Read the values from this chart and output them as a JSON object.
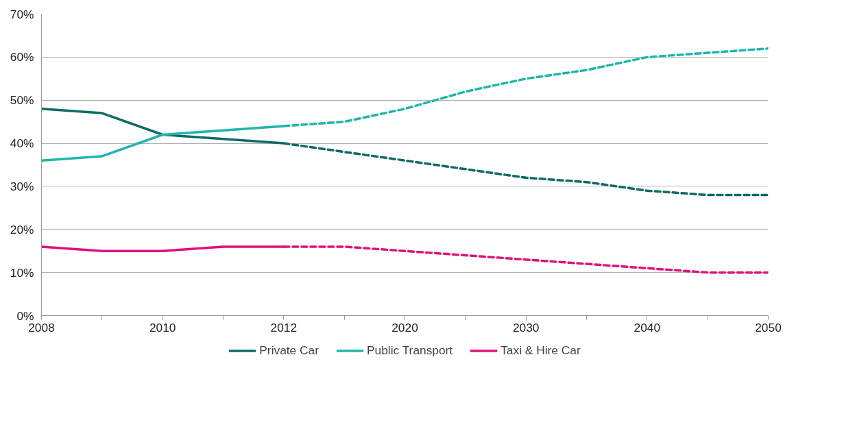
{
  "chart_data": {
    "type": "line",
    "categories": [
      "2008",
      null,
      "2010",
      null,
      "2012",
      null,
      "2020",
      null,
      "2030",
      null,
      "2040",
      null,
      "2050"
    ],
    "series": [
      {
        "name": "Private Car",
        "color": "#0e6b63",
        "line_style": "solid",
        "values": [
          48,
          47,
          42,
          41,
          40,
          null,
          null,
          null,
          null,
          null,
          null,
          null,
          null
        ]
      },
      {
        "name": "Public Transport",
        "color": "#1fb5ad",
        "line_style": "solid",
        "values": [
          36,
          37,
          42,
          43,
          44,
          null,
          null,
          null,
          null,
          null,
          null,
          null,
          null
        ]
      },
      {
        "name": "Taxi & Hire Car",
        "color": "#e0107a",
        "line_style": "solid",
        "values": [
          16,
          15,
          15,
          16,
          16,
          null,
          null,
          null,
          null,
          null,
          null,
          null,
          null
        ]
      },
      {
        "color": "#0e6b63",
        "line_style": "dashed",
        "values": [
          null,
          null,
          null,
          null,
          40,
          38,
          36,
          34,
          32,
          31,
          29,
          28,
          28
        ]
      },
      {
        "color": "#1fb5ad",
        "line_style": "dashed",
        "values": [
          null,
          null,
          null,
          null,
          44,
          45,
          48,
          52,
          55,
          57,
          60,
          61,
          62
        ]
      },
      {
        "color": "#e0107a",
        "line_style": "dashed",
        "values": [
          null,
          null,
          null,
          null,
          16,
          16,
          15,
          14,
          13,
          12,
          11,
          10,
          10
        ]
      }
    ],
    "ylim": [
      0,
      70
    ],
    "yticks": [
      {
        "value": 0,
        "label": "0%"
      },
      {
        "value": 10,
        "label": "10%"
      },
      {
        "value": 20,
        "label": "20%"
      },
      {
        "value": 30,
        "label": "30%"
      },
      {
        "value": 40,
        "label": "40%"
      },
      {
        "value": 50,
        "label": "50%"
      },
      {
        "value": 60,
        "label": "60%"
      },
      {
        "value": 70,
        "label": "70%"
      }
    ],
    "grid": "y",
    "legend": "bottom"
  }
}
